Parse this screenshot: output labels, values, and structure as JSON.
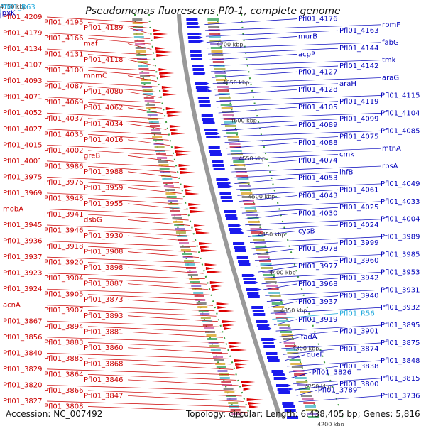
{
  "title": "Pseudomonas fluorescens Pf0-1, complete genome",
  "accession": "Accession: NC_007492",
  "summary": "Topology: circular; Length: 6,438,405 bp; Genes: 5,816",
  "colors": {
    "left_label": "#cc0000",
    "right_label": "#0000bb",
    "rna_label": "#22aadd",
    "backbone": "#999999",
    "fwd_feature": "#dd0000",
    "rev_feature": "#1a1aee"
  },
  "kbp_ticks": [
    "4750 kbp",
    "4700 kbp",
    "4650 kbp",
    "4600 kbp",
    "4550 kbp",
    "4500 kbp",
    "4450 kbp",
    "4400 kbp",
    "4350 kbp",
    "4300 kbp",
    "4250 kbp",
    "4200 kbp"
  ],
  "left_labels": [
    "Pfl01_4209",
    "Pfl01_4195",
    "Pfl01_4189",
    "Pfl01_4179",
    "Pfl01_4166",
    "maf",
    "Pfl01_4134",
    "Pfl01_4131",
    "Pfl01_4118",
    "Pfl01_4107",
    "Pfl01_4100",
    "mnmC",
    "Pfl01_4093",
    "Pfl01_4087",
    "Pfl01_4080",
    "Pfl01_4071",
    "Pfl01_4069",
    "Pfl01_4062",
    "Pfl01_4052",
    "Pfl01_4037",
    "Pfl01_4034",
    "Pfl01_4027",
    "Pfl01_4035",
    "Pfl01_4016",
    "Pfl01_4015",
    "Pfl01_4002",
    "greB",
    "Pfl01_4001",
    "Pfl01_3986",
    "Pfl01_3988",
    "Pfl01_3975",
    "Pfl01_3976",
    "Pfl01_3959",
    "Pfl01_3969",
    "Pfl01_3948",
    "Pfl01_3955",
    "mobA",
    "Pfl01_3941",
    "dsbG",
    "Pfl01_3945",
    "Pfl01_3946",
    "Pfl01_3930",
    "Pfl01_3936",
    "Pfl01_3918",
    "Pfl01_3908",
    "Pfl01_3937",
    "Pfl01_3920",
    "Pfl01_3898",
    "Pfl01_3923",
    "Pfl01_3904",
    "Pfl01_3887",
    "Pfl01_3924",
    "Pfl01_3905",
    "Pfl01_3873",
    "acnA",
    "Pfl01_3907",
    "Pfl01_3893",
    "Pfl01_3867",
    "Pfl01_3894",
    "Pfl01_3881",
    "Pfl01_3856",
    "Pfl01_3883",
    "Pfl01_3860",
    "Pfl01_3840",
    "Pfl01_3885",
    "Pfl01_3868",
    "Pfl01_3829",
    "Pfl01_3864",
    "Pfl01_3846",
    "Pfl01_3820",
    "Pfl01_3866",
    "Pfl01_3847",
    "Pfl01_3827",
    "Pfl01_3808"
  ],
  "right_labels": [
    "Pfl01_R63",
    "lpxK",
    "Pfl01_4176",
    "rpmF",
    "Pfl01_4163",
    "murB",
    "fabG",
    "Pfl01_4144",
    "acpP",
    "tmk",
    "Pfl01_4142",
    "Pfl01_4127",
    "araG",
    "araH",
    "Pfl01_4128",
    "Pfl01_4115",
    "Pfl01_4119",
    "Pfl01_4105",
    "Pfl01_4104",
    "Pfl01_4099",
    "Pfl01_4089",
    "Pfl01_4085",
    "Pfl01_4075",
    "Pfl01_4088",
    "mtnA",
    "cmk",
    "Pfl01_4074",
    "rpsA",
    "ihfB",
    "Pfl01_4053",
    "Pfl01_4049",
    "Pfl01_4061",
    "Pfl01_4043",
    "Pfl01_4033",
    "Pfl01_4025",
    "Pfl01_4030",
    "Pfl01_4004",
    "Pfl01_4024",
    "cysB",
    "Pfl01_3989",
    "Pfl01_3999",
    "Pfl01_3978",
    "Pfl01_3985",
    "Pfl01_3960",
    "Pfl01_3977",
    "Pfl01_3953",
    "Pfl01_3942",
    "Pfl01_3968",
    "Pfl01_3931",
    "Pfl01_3940",
    "Pfl01_3937",
    "Pfl01_3932",
    "Pfl01_R56",
    "Pfl01_3919",
    "Pfl01_3895",
    "Pfl01_3901",
    "fadA",
    "Pfl01_3875",
    "Pfl01_3874",
    "queF",
    "Pfl01_3848",
    "Pfl01_3838",
    "Pfl01_3826",
    "Pfl01_3815",
    "Pfl01_3800",
    "Pfl01_3789",
    "Pfl01_3736"
  ]
}
